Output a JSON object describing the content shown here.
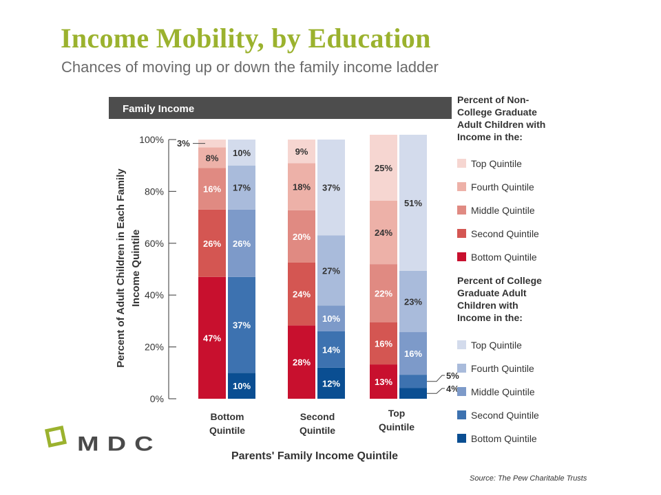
{
  "title": "Income Mobility, by Education",
  "subtitle": "Chances of moving up or down the family income ladder",
  "source": "Source: The Pew Charitable Trusts",
  "logo_text": "MDC",
  "colors": {
    "title": "#9bb22e",
    "header_bar": "#4d4d4d",
    "logo_square": "#9bb22e",
    "noncollege": [
      "#c8102e",
      "#d45652",
      "#e08a82",
      "#edb1a8",
      "#f6d6d1"
    ],
    "college": [
      "#0a4e92",
      "#3d72b0",
      "#7d9ac9",
      "#a9bbdb",
      "#d3dbec"
    ]
  },
  "chart_data": {
    "type": "bar",
    "stacked": true,
    "header": "Family Income",
    "categories": [
      "Bottom\nQuintile",
      "Second\nQuintile",
      "Top\nQuintile"
    ],
    "xlabel": "Parents' Family Income Quintile",
    "ylabel": "Percent of  Adult Children in Each Family Income  Quintile",
    "ylim": [
      0,
      100
    ],
    "yticks": [
      "0%",
      "20%",
      "40%",
      "60%",
      "80%",
      "100%"
    ],
    "grid": false,
    "stack_order": [
      "Bottom Quintile",
      "Second Quintile",
      "Middle Quintile",
      "Fourth Quintile",
      "Top Quintile"
    ],
    "groups": [
      {
        "legend_title": "Percent of Non-College Graduate Adult Children with Income in the:",
        "legend_items": [
          "Top Quintile",
          "Fourth Quintile",
          "Middle Quintile",
          "Second Quintile",
          "Bottom Quintile"
        ],
        "values": [
          [
            47,
            26,
            16,
            8,
            3
          ],
          [
            28,
            24,
            20,
            18,
            9
          ],
          [
            13,
            16,
            22,
            24,
            25
          ]
        ],
        "labels": [
          [
            "47%",
            "26%",
            "16%",
            "8%",
            "3%"
          ],
          [
            "28%",
            "24%",
            "20%",
            "18%",
            "9%"
          ],
          [
            "13%",
            "16%",
            "22%",
            "24%",
            "25%"
          ]
        ]
      },
      {
        "legend_title": "Percent of College Graduate Adult Children with Income in the:",
        "legend_items": [
          "Top Quintile",
          "Fourth Quintile",
          "Middle Quintile",
          "Second Quintile",
          "Bottom Quintile"
        ],
        "values": [
          [
            10,
            37,
            26,
            17,
            10
          ],
          [
            12,
            14,
            10,
            27,
            37
          ],
          [
            4,
            5,
            16,
            23,
            51
          ]
        ],
        "labels": [
          [
            "10%",
            "37%",
            "26%",
            "17%",
            "10%"
          ],
          [
            "12%",
            "14%",
            "10%",
            "27%",
            "37%"
          ],
          [
            "4%",
            "5%",
            "16%",
            "23%",
            "51%"
          ]
        ]
      }
    ]
  }
}
